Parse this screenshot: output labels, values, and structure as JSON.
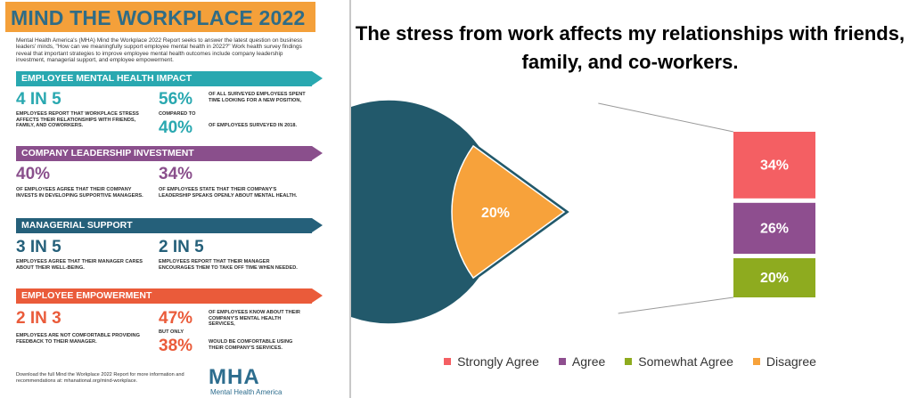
{
  "infographic": {
    "title": "MIND THE WORKPLACE 2022",
    "intro": "Mental Health America's (MHA) Mind the Workplace 2022 Report seeks to answer the latest question on business leaders' minds, \"How can we meaningfully support employee mental health in 2022?\" Work health survey findings reveal that important strategies to improve employee mental health outcomes include company leadership investment, managerial support, and employee empowerment.",
    "sections": [
      {
        "heading": "EMPLOYEE MENTAL HEALTH IMPACT",
        "color": "#29a8b0",
        "left_big": "4 IN 5",
        "left_text": "EMPLOYEES REPORT THAT WORKPLACE STRESS AFFECTS THEIR RELATIONSHIPS WITH FRIENDS, FAMILY, AND COWORKERS.",
        "right_big": "56%",
        "right_text": "OF ALL SURVEYED EMPLOYEES SPENT TIME LOOKING FOR A NEW POSITION,",
        "right_mid": "COMPARED TO",
        "right_big2": "40%",
        "right_text2": "OF EMPLOYEES SURVEYED IN 2018."
      },
      {
        "heading": "COMPANY LEADERSHIP INVESTMENT",
        "color": "#8a4f8c",
        "left_big": "40%",
        "left_text": "OF EMPLOYEES AGREE THAT THEIR COMPANY INVESTS IN DEVELOPING SUPPORTIVE MANAGERS.",
        "right_big": "34%",
        "right_text": "OF EMPLOYEES STATE THAT THEIR COMPANY'S LEADERSHIP SPEAKS OPENLY ABOUT MENTAL HEALTH."
      },
      {
        "heading": "MANAGERIAL SUPPORT",
        "color": "#25607a",
        "left_big": "3 IN 5",
        "left_text": "EMPLOYEES AGREE THAT THEIR MANAGER CARES ABOUT THEIR WELL-BEING.",
        "right_big": "2 IN 5",
        "right_text": "EMPLOYEES REPORT THAT THEIR MANAGER ENCOURAGES THEM TO TAKE OFF TIME WHEN NEEDED."
      },
      {
        "heading": "EMPLOYEE EMPOWERMENT",
        "color": "#ea5b3a",
        "left_big": "2 IN 3",
        "left_text": "EMPLOYEES ARE NOT COMFORTABLE PROVIDING FEEDBACK TO THEIR MANAGER.",
        "right_big": "47%",
        "right_text": "OF EMPLOYEES KNOW ABOUT THEIR COMPANY'S MENTAL HEALTH SERVICES,",
        "right_mid": "BUT ONLY",
        "right_big2": "38%",
        "right_text2": "WOULD BE COMFORTABLE USING THEIR COMPANY'S SERVICES."
      }
    ],
    "footer": "Download the full Mind the Workplace 2022 Report for more information and recommendations at: mhanational.org/mind-workplace.",
    "logo_mark": "MHA",
    "logo_label": "Mental Health America"
  },
  "chart_data": {
    "type": "pie",
    "title": "The stress from work affects my relationships with friends, family, and co-workers.",
    "pie": [
      {
        "label": "",
        "value": 80,
        "display": "80%",
        "color": "#22596b"
      },
      {
        "label": "Disagree",
        "value": 20,
        "display": "20%",
        "color": "#f7a23b"
      }
    ],
    "breakdown_of": "80%",
    "breakdown": [
      {
        "label": "Strongly Agree",
        "value": 34,
        "display": "34%",
        "color": "#f45f63"
      },
      {
        "label": "Agree",
        "value": 26,
        "display": "26%",
        "color": "#8e4e8f"
      },
      {
        "label": "Somewhat Agree",
        "value": 20,
        "display": "20%",
        "color": "#8eab1f"
      }
    ],
    "legend": [
      {
        "label": "Strongly Agree",
        "color": "#f45f63"
      },
      {
        "label": "Agree",
        "color": "#8e4e8f"
      },
      {
        "label": "Somewhat Agree",
        "color": "#8eab1f"
      },
      {
        "label": "Disagree",
        "color": "#f7a23b"
      }
    ],
    "legend_position": "bottom"
  }
}
